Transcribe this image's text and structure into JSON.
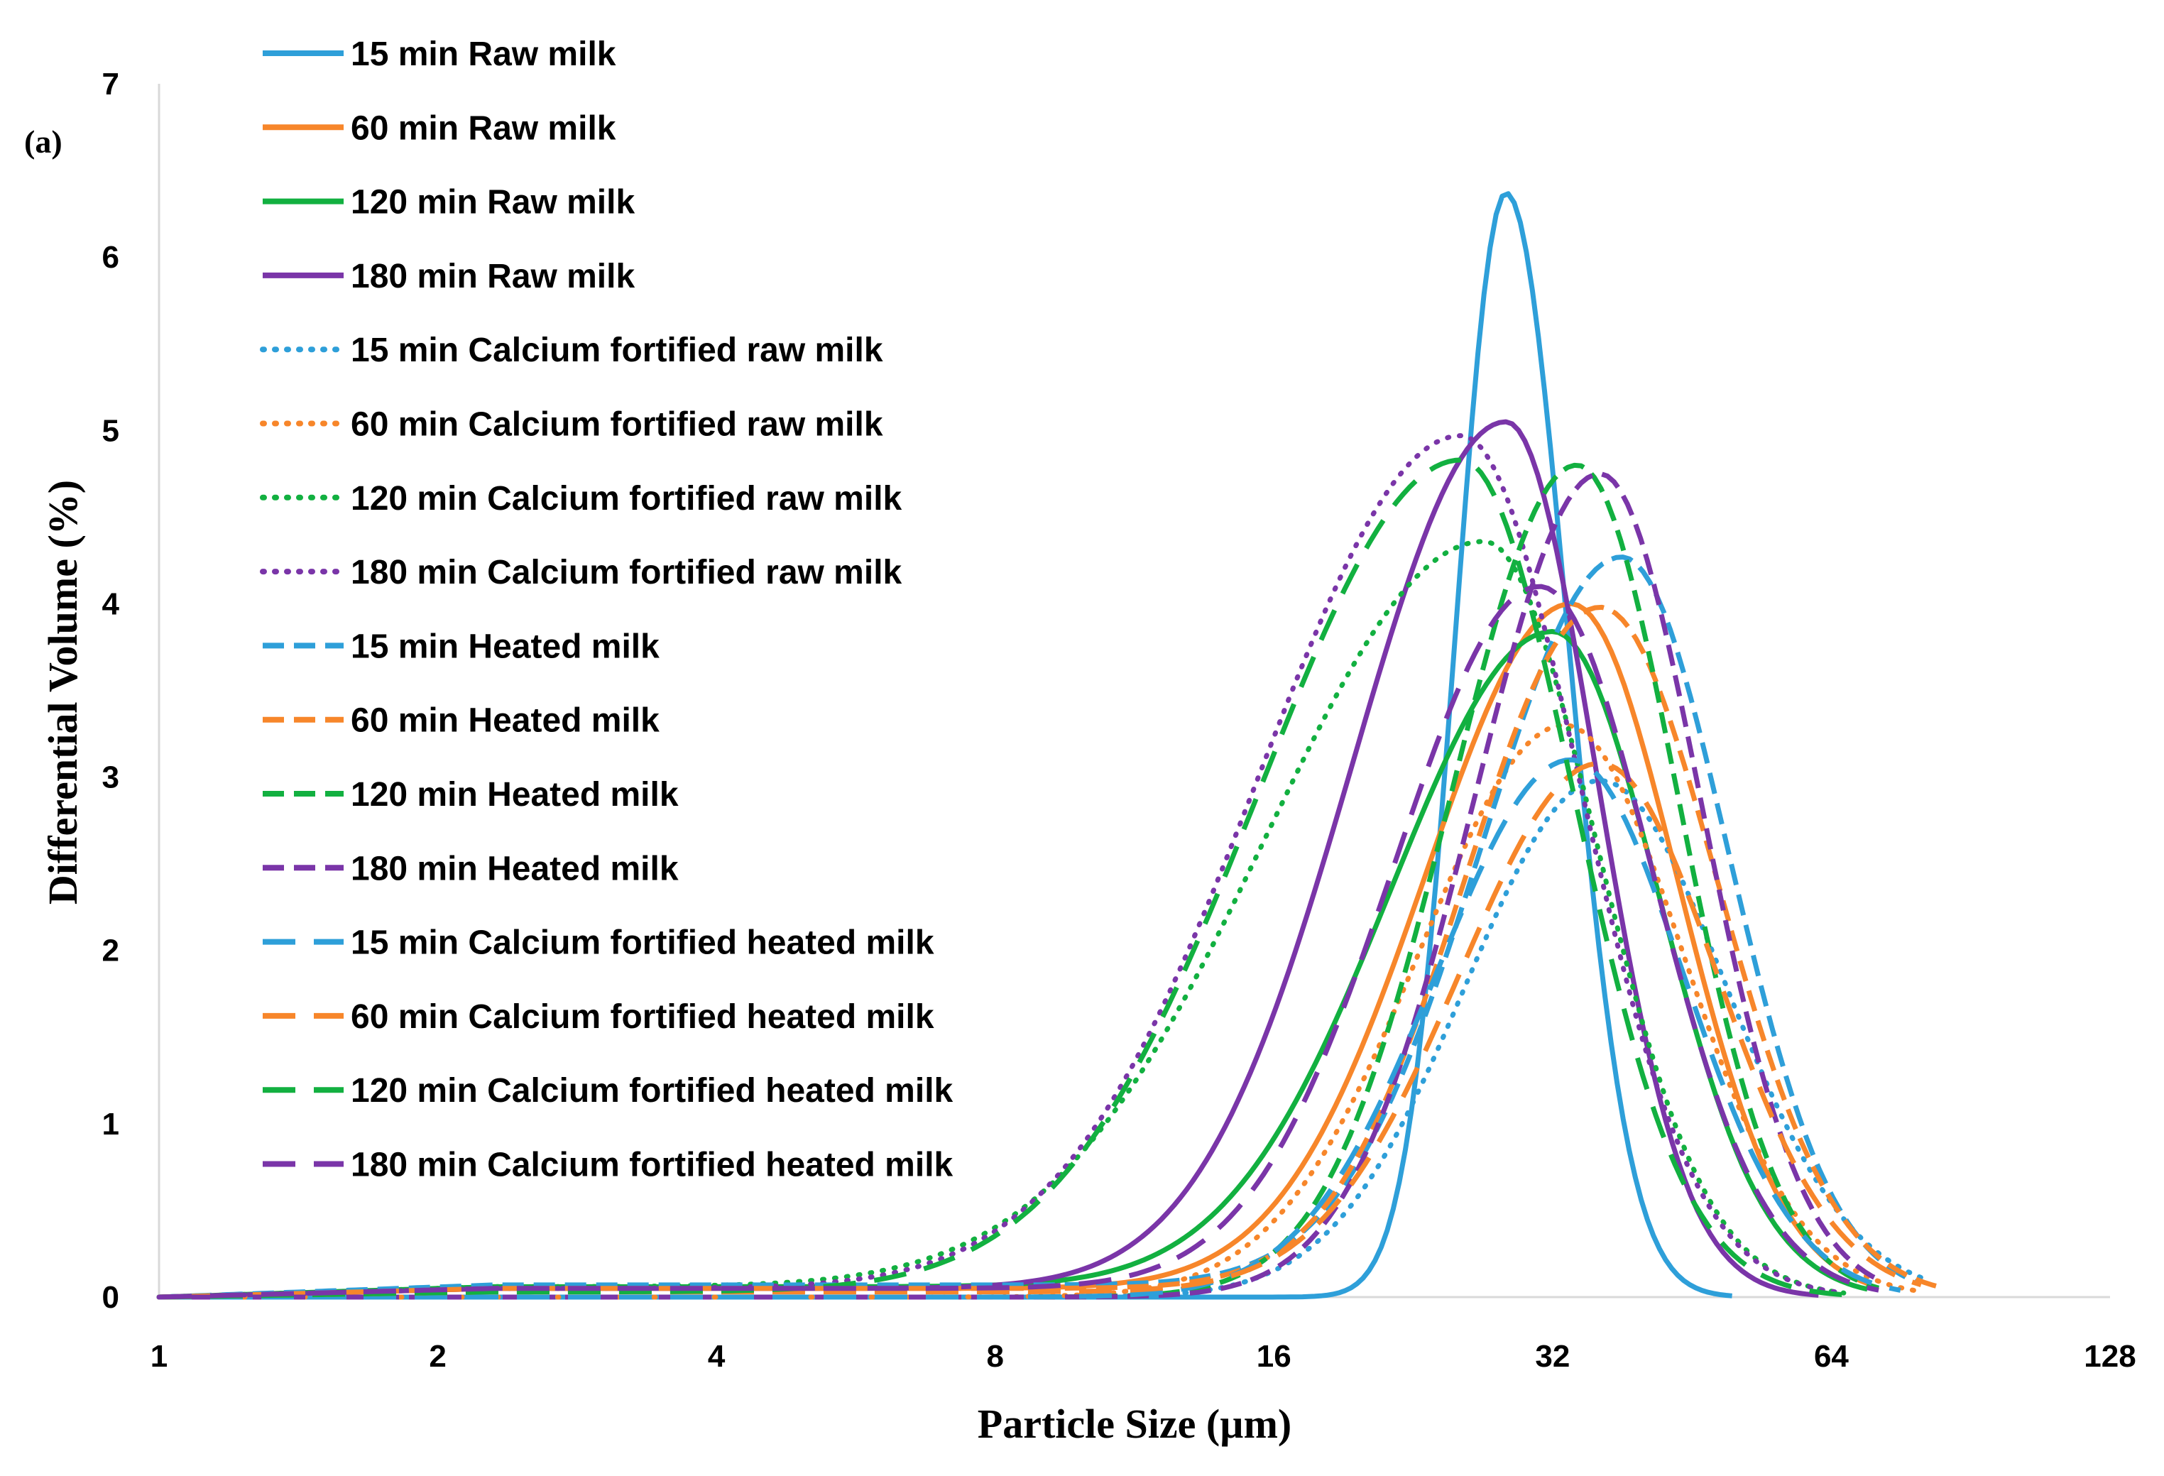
{
  "panel_label": "(a)",
  "chart_data": {
    "type": "line",
    "title": "",
    "xlabel": "Particle Size (µm)",
    "ylabel": "Differential Volume (%)",
    "xscale": "log2",
    "xlim": [
      1,
      128
    ],
    "ylim": [
      0,
      7
    ],
    "xticks": [
      1,
      2,
      4,
      8,
      16,
      32,
      64,
      128
    ],
    "xtick_labels": [
      "1",
      "2",
      "4",
      "8",
      "16",
      "32",
      "64",
      "128"
    ],
    "yticks": [
      0,
      1,
      2,
      3,
      4,
      5,
      6,
      7
    ],
    "ytick_labels": [
      "0",
      "1",
      "2",
      "3",
      "4",
      "5",
      "6",
      "7"
    ],
    "grid": false,
    "legend_position": "top-left",
    "colors": {
      "blue": "#2E9FD9",
      "orange": "#F7862A",
      "green": "#12B040",
      "purple": "#7A35A8"
    },
    "series": [
      {
        "name": "15 min Raw milk",
        "color": "#2E9FD9",
        "style": "solid",
        "peak_x": 28.5,
        "peak_y": 6.37,
        "sigma_left": 0.18,
        "sigma_right": 0.22,
        "tail": 0.0,
        "x_end": 50
      },
      {
        "name": "60 min Raw milk",
        "color": "#F7862A",
        "style": "solid",
        "peak_x": 33.5,
        "peak_y": 3.95,
        "sigma_left": 0.52,
        "sigma_right": 0.38,
        "tail": 0.05,
        "x_end": 70
      },
      {
        "name": "120 min Raw milk",
        "color": "#12B040",
        "style": "solid",
        "peak_x": 32.0,
        "peak_y": 3.78,
        "sigma_left": 0.58,
        "sigma_right": 0.38,
        "tail": 0.06,
        "x_end": 70
      },
      {
        "name": "180 min Raw milk",
        "color": "#7A35A8",
        "style": "solid",
        "peak_x": 28.5,
        "peak_y": 5.0,
        "sigma_left": 0.55,
        "sigma_right": 0.32,
        "tail": 0.05,
        "x_end": 62
      },
      {
        "name": "15 min Calcium fortified raw milk",
        "color": "#2E9FD9",
        "style": "dotted",
        "peak_x": 36.0,
        "peak_y": 2.98,
        "sigma_left": 0.48,
        "sigma_right": 0.45,
        "tail": 0.0,
        "x_end": 80
      },
      {
        "name": "60 min Calcium fortified raw milk",
        "color": "#F7862A",
        "style": "dotted",
        "peak_x": 33.0,
        "peak_y": 3.3,
        "sigma_left": 0.52,
        "sigma_right": 0.42,
        "tail": 0.0,
        "x_end": 80
      },
      {
        "name": "120 min Calcium fortified raw milk",
        "color": "#12B040",
        "style": "dotted",
        "peak_x": 27.0,
        "peak_y": 4.3,
        "sigma_left": 0.78,
        "sigma_right": 0.4,
        "tail": 0.06,
        "x_end": 66
      },
      {
        "name": "180 min Calcium fortified raw milk",
        "color": "#7A35A8",
        "style": "dotted",
        "peak_x": 25.5,
        "peak_y": 4.92,
        "sigma_left": 0.72,
        "sigma_right": 0.42,
        "tail": 0.05,
        "x_end": 66
      },
      {
        "name": "15 min Heated milk",
        "color": "#2E9FD9",
        "style": "dashed",
        "peak_x": 38.0,
        "peak_y": 4.2,
        "sigma_left": 0.5,
        "sigma_right": 0.38,
        "tail": 0.07,
        "x_end": 80
      },
      {
        "name": "60 min Heated milk",
        "color": "#F7862A",
        "style": "dashed",
        "peak_x": 36.0,
        "peak_y": 3.93,
        "sigma_left": 0.48,
        "sigma_right": 0.42,
        "tail": 0.05,
        "x_end": 85
      },
      {
        "name": "120 min Heated milk",
        "color": "#12B040",
        "style": "dashed",
        "peak_x": 34.0,
        "peak_y": 4.8,
        "sigma_left": 0.45,
        "sigma_right": 0.36,
        "tail": 0.0,
        "x_end": 72
      },
      {
        "name": "180 min Heated milk",
        "color": "#7A35A8",
        "style": "dashed",
        "peak_x": 36.0,
        "peak_y": 4.75,
        "sigma_left": 0.45,
        "sigma_right": 0.36,
        "tail": 0.0,
        "x_end": 72
      },
      {
        "name": "15 min Calcium fortified heated milk",
        "color": "#2E9FD9",
        "style": "longdash",
        "peak_x": 33.5,
        "peak_y": 3.1,
        "sigma_left": 0.48,
        "sigma_right": 0.4,
        "tail": 0.0,
        "x_end": 76
      },
      {
        "name": "60 min Calcium fortified heated milk",
        "color": "#F7862A",
        "style": "longdash",
        "peak_x": 36.0,
        "peak_y": 3.05,
        "sigma_left": 0.5,
        "sigma_right": 0.42,
        "tail": 0.03,
        "x_end": 80
      },
      {
        "name": "120 min Calcium fortified heated milk",
        "color": "#12B040",
        "style": "longdash",
        "peak_x": 25.5,
        "peak_y": 4.8,
        "sigma_left": 0.72,
        "sigma_right": 0.4,
        "tail": 0.03,
        "x_end": 66
      },
      {
        "name": "180 min Calcium fortified heated milk",
        "color": "#7A35A8",
        "style": "longdash",
        "peak_x": 31.0,
        "peak_y": 4.05,
        "sigma_left": 0.52,
        "sigma_right": 0.4,
        "tail": 0.05,
        "x_end": 72
      }
    ]
  }
}
